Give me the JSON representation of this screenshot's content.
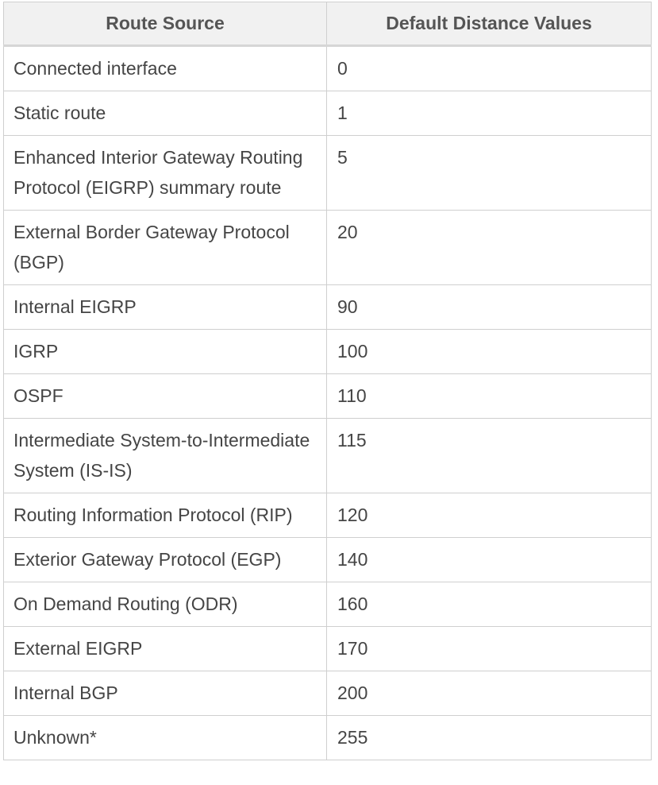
{
  "table": {
    "headers": [
      "Route Source",
      "Default Distance Values"
    ],
    "rows": [
      {
        "source": "Connected interface",
        "distance": "0"
      },
      {
        "source": "Static route",
        "distance": "1"
      },
      {
        "source": "Enhanced Interior Gateway Routing Protocol (EIGRP) summary route",
        "distance": "5"
      },
      {
        "source": "External Border Gateway Protocol (BGP)",
        "distance": "20"
      },
      {
        "source": "Internal EIGRP",
        "distance": "90"
      },
      {
        "source": "IGRP",
        "distance": "100"
      },
      {
        "source": "OSPF",
        "distance": "110"
      },
      {
        "source": "Intermediate System-to-Intermediate System (IS-IS)",
        "distance": "115"
      },
      {
        "source": "Routing Information Protocol (RIP)",
        "distance": "120"
      },
      {
        "source": "Exterior Gateway Protocol (EGP)",
        "distance": "140"
      },
      {
        "source": "On Demand Routing (ODR)",
        "distance": "160"
      },
      {
        "source": "External EIGRP",
        "distance": "170"
      },
      {
        "source": "Internal BGP",
        "distance": "200"
      },
      {
        "source": "Unknown*",
        "distance": "255"
      }
    ]
  }
}
